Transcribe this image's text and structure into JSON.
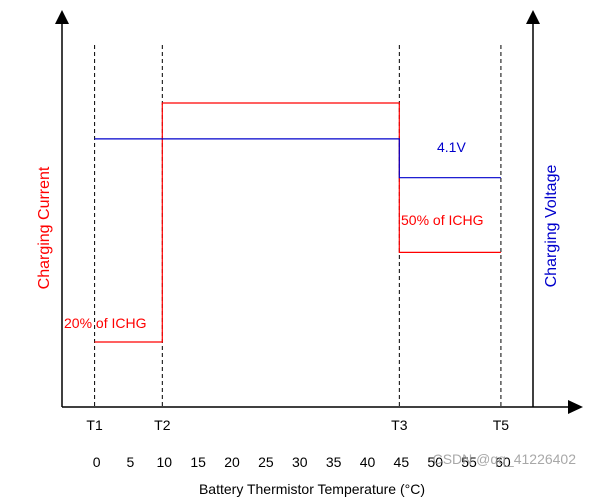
{
  "chart_data": {
    "type": "line",
    "xlabel": "Battery Thermistor Temperature (°C)",
    "ylabel_left": "Charging Current",
    "ylabel_right": "Charging Voltage",
    "x_ticks": [
      "0",
      "5",
      "10",
      "15",
      "20",
      "25",
      "30",
      "35",
      "40",
      "45",
      "50",
      "55",
      "60"
    ],
    "thresholds": [
      {
        "label": "T1",
        "x": 0
      },
      {
        "label": "T2",
        "x": 10
      },
      {
        "label": "T3",
        "x": 45
      },
      {
        "label": "T5",
        "x": 60
      }
    ],
    "series": [
      {
        "name": "Charging Current",
        "color": "#ff0000",
        "points": [
          [
            0,
            0.2
          ],
          [
            10,
            0.2
          ],
          [
            10,
            1.0
          ],
          [
            45,
            1.0
          ],
          [
            45,
            0.5
          ],
          [
            60,
            0.5
          ]
        ]
      },
      {
        "name": "Charging Voltage",
        "color": "#0000cc",
        "points": [
          [
            0,
            0.88
          ],
          [
            45,
            0.88
          ],
          [
            45,
            0.75
          ],
          [
            60,
            0.75
          ]
        ]
      }
    ],
    "annotations": [
      {
        "text": "20% of ICHG",
        "color": "#ff0000"
      },
      {
        "text": "50% of ICHG",
        "color": "#ff0000"
      },
      {
        "text": "4.1V",
        "color": "#0000cc"
      }
    ]
  },
  "watermark": "CSDN @qq_41226402"
}
